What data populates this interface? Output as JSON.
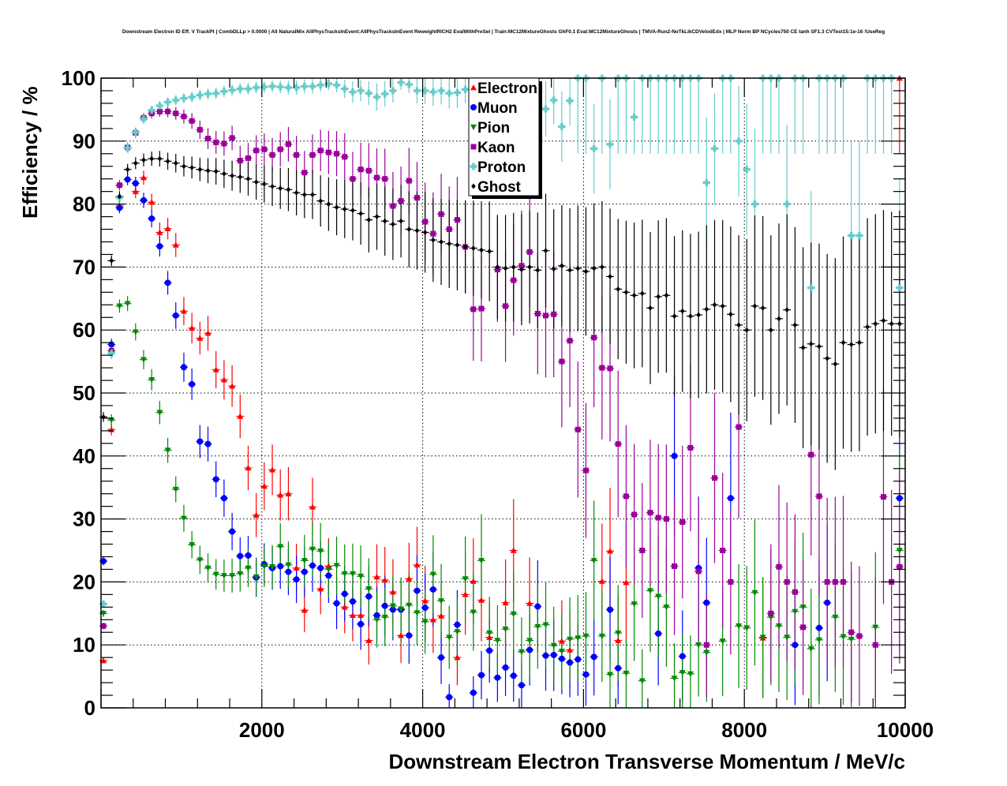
{
  "chart_data": {
    "type": "scatter",
    "title": "Downstream Electron ID Eff. V TrackPt | CombDLLp > 0.0000 | All NaturalMix AllPhysTracksInEvent:AllPhysTracksInEvent ReweightRICH2 EvalWithPreSel | Train:MC12MixtureGhosts GhF0.1 Eval:MC12MixtureGhosts | TMVA-Run2-NoTkLikCDVelodEdx | MLP Norm BP NCycles750 CE tanh SF1.3 CVTest15:1e-16 !UseReg",
    "xlabel": "Downstream Electron Transverse Momentum / MeV/c",
    "ylabel": "Efficiency / %",
    "xlim": [
      0,
      10000
    ],
    "ylim": [
      0,
      100
    ],
    "grid": true,
    "legend_position": "top-center",
    "x_ticks": [
      "2000",
      "4000",
      "6000",
      "8000",
      "10000"
    ],
    "x_tick_values": [
      2000,
      4000,
      6000,
      8000,
      10000
    ],
    "y_ticks": [
      "0",
      "10",
      "20",
      "30",
      "40",
      "50",
      "60",
      "70",
      "80",
      "90",
      "100"
    ],
    "y_tick_values": [
      0,
      10,
      20,
      30,
      40,
      50,
      60,
      70,
      80,
      90,
      100
    ],
    "bin_width": 100,
    "x_start": 30,
    "series": [
      {
        "name": "Electron",
        "color": "#ff0000",
        "marker": "triangle-up",
        "values": [
          7.5,
          44.2,
          79.7,
          null,
          82,
          84.2,
          80.3,
          75.5,
          76.1,
          73.5,
          63,
          60.3,
          58.7,
          59.5,
          53.7,
          52.1,
          51.1,
          46.3,
          38.1,
          30.6,
          35.2,
          37.8,
          33.8,
          34,
          22.2,
          15.5,
          31.9,
          18.9,
          22.5,
          null,
          16,
          14.7,
          14.7,
          10.7,
          20.8,
          20.3,
          18.4,
          11.5,
          20.5,
          22.7,
          17,
          14,
          14.6,
          null,
          8,
          18,
          20.1,
          17.1,
          11.2,
          null,
          16.7,
          25,
          null,
          16.6,
          null,
          null,
          null,
          10.6,
          9.2,
          null,
          null,
          null,
          20.1,
          24.9,
          10.7,
          19.9,
          null,
          null,
          null,
          null,
          null,
          null,
          null,
          null,
          null,
          null,
          null,
          null,
          null,
          null,
          null,
          null,
          11.1,
          null,
          null,
          null,
          null,
          null,
          null,
          null,
          null,
          null,
          null,
          null,
          null,
          null,
          null,
          null,
          null,
          100
        ]
      },
      {
        "name": "Muon",
        "color": "#0000ff",
        "marker": "circle",
        "values": [
          23.3,
          57.7,
          79.4,
          83.9,
          83.3,
          80.6,
          77.7,
          73.3,
          67.5,
          62.3,
          54.1,
          51.4,
          42.3,
          41.9,
          36.3,
          33.3,
          28,
          24.1,
          24.2,
          20.7,
          22.8,
          22.2,
          22.5,
          21.6,
          20.4,
          21.6,
          22.6,
          22.2,
          21,
          16.6,
          18.1,
          16.9,
          13.3,
          17.7,
          14.7,
          16.2,
          15.6,
          15.6,
          11.5,
          18.6,
          15.9,
          18.8,
          8,
          1.7,
          13.2,
          null,
          2.4,
          5.2,
          9.1,
          4.8,
          6.4,
          5.1,
          3.6,
          9.2,
          16.1,
          8.3,
          8.4,
          7.8,
          7.2,
          7.7,
          5.3,
          8.1,
          null,
          15.6,
          6.3,
          null,
          null,
          null,
          null,
          11.8,
          null,
          40,
          8.2,
          null,
          22.2,
          16.7,
          null,
          null,
          33.3,
          null,
          null,
          null,
          null,
          null,
          null,
          null,
          10,
          null,
          null,
          12.7,
          16.7,
          null,
          null,
          null,
          null,
          null,
          null,
          null,
          null,
          33.3
        ]
      },
      {
        "name": "Pion",
        "color": "#008800",
        "marker": "triangle-down",
        "values": [
          15,
          45.7,
          63.8,
          64.2,
          59.7,
          55.3,
          52.1,
          46.9,
          40.9,
          34.7,
          30.1,
          25.9,
          23.5,
          22.2,
          21.2,
          21,
          21,
          21.3,
          22.2,
          20.8,
          22.5,
          22.4,
          25.6,
          22.7,
          null,
          23.4,
          25.2,
          24.9,
          22,
          22.6,
          21.3,
          21.3,
          20.9,
          18.9,
          14,
          14.4,
          16.2,
          15.7,
          16.3,
          15.1,
          13.7,
          21.2,
          17,
          11.2,
          12.1,
          20.5,
          15.2,
          23.4,
          11.9,
          10.7,
          12.5,
          14.9,
          8.9,
          10.7,
          12.9,
          13.2,
          9.9,
          9,
          10.9,
          11.1,
          11.4,
          23.4,
          11.4,
          5.3,
          11.9,
          5.5,
          16.5,
          4.3,
          18.6,
          17.7,
          16,
          4.7,
          5.6,
          5.4,
          10,
          8.8,
          null,
          10.6,
          null,
          13,
          12.7,
          18.3,
          11.2,
          14.4,
          13,
          11.2,
          15.3,
          16,
          9.4,
          10.8,
          null,
          14.4,
          11.3,
          10.9,
          null,
          null,
          12.8,
          null,
          null,
          25
        ]
      },
      {
        "name": "Kaon",
        "color": "#990099",
        "marker": "square",
        "values": [
          13,
          56.7,
          83,
          89,
          91.3,
          93.7,
          94.4,
          94.7,
          94.7,
          94.4,
          93.9,
          93.2,
          91.8,
          90.4,
          89.8,
          89.6,
          90.5,
          86.9,
          87.3,
          88.5,
          88.7,
          87.8,
          88.7,
          89.5,
          87.8,
          85,
          87.8,
          88.5,
          88.2,
          88,
          87.5,
          84,
          85.5,
          85.3,
          84.2,
          84,
          79.7,
          80.5,
          83.7,
          81,
          77.2,
          75.3,
          78.4,
          76,
          77.5,
          73.2,
          63.3,
          63.4,
          null,
          69.6,
          63.8,
          67.9,
          70.2,
          72.4,
          62.6,
          62.3,
          62.5,
          55,
          58.3,
          44.2,
          37.7,
          58.8,
          54,
          53.9,
          41.9,
          33.6,
          30.7,
          25,
          31,
          30.2,
          30,
          22.5,
          29.5,
          41.3,
          21.7,
          10,
          36.5,
          25,
          20,
          44.6,
          null,
          null,
          null,
          15,
          22.4,
          20,
          18.4,
          12.8,
          40.2,
          33.6,
          20,
          20,
          20,
          12,
          11.4,
          null,
          10,
          33.5,
          20,
          22.4
        ]
      },
      {
        "name": "Proton",
        "color": "#66cccc",
        "marker": "cross",
        "values": [
          16.5,
          56.3,
          81,
          88.9,
          91.4,
          93.5,
          94.9,
          95.6,
          96.2,
          96.5,
          96.8,
          97,
          97.3,
          97.5,
          97.6,
          97.9,
          98.1,
          98.3,
          98.3,
          98.5,
          98.6,
          98.7,
          98.6,
          98.5,
          98.5,
          98.7,
          98.7,
          98.9,
          99.1,
          98.9,
          98.3,
          97.8,
          98,
          97.6,
          97,
          97.5,
          98,
          99.3,
          99,
          98,
          98,
          97.8,
          98,
          97.6,
          97.7,
          98.2,
          98,
          98.5,
          98,
          98.2,
          99.1,
          98.9,
          98.7,
          99,
          99.3,
          95.1,
          96.5,
          92.3,
          96.4,
          100,
          100,
          88.8,
          100,
          89.5,
          100,
          100,
          93.8,
          100,
          100,
          100,
          100,
          100,
          100,
          100,
          100,
          83.4,
          88.8,
          100,
          100,
          90,
          85.5,
          80,
          100,
          100,
          100,
          80,
          100,
          100,
          66.7,
          100,
          100,
          100,
          100,
          75,
          75,
          100,
          100,
          100,
          100,
          66.7
        ]
      },
      {
        "name": "Ghost",
        "color": "#000000",
        "marker": "diamond",
        "values": [
          46.2,
          71,
          81.2,
          85.5,
          86.5,
          87,
          87.2,
          87.2,
          86.8,
          86.5,
          86,
          85.8,
          85.5,
          85.3,
          85.2,
          84.8,
          84.5,
          84.3,
          84,
          83.5,
          83.2,
          82.8,
          82.5,
          82.3,
          81.8,
          81.5,
          81.5,
          80.5,
          80,
          79.5,
          79.2,
          79,
          78.5,
          77.5,
          78,
          77.3,
          76.8,
          77.3,
          76,
          75.8,
          75.5,
          74.3,
          74,
          73.7,
          73.5,
          73.2,
          73,
          72.7,
          72.5,
          70,
          69.8,
          70,
          69.6,
          70,
          69.5,
          72.6,
          69.7,
          70.2,
          69.5,
          69.8,
          69.3,
          69.8,
          70,
          68.5,
          66.5,
          66,
          65.5,
          65.8,
          63.5,
          65.3,
          65.5,
          62.2,
          63,
          62.2,
          62.4,
          63.3,
          64,
          63.8,
          62.5,
          60.8,
          60,
          63.8,
          63.5,
          60,
          61.8,
          63.2,
          60.8,
          57.2,
          57.8,
          57.4,
          55.5,
          54.6,
          58,
          57.7,
          58,
          60.5,
          61,
          61.5,
          61,
          61
        ]
      }
    ]
  }
}
